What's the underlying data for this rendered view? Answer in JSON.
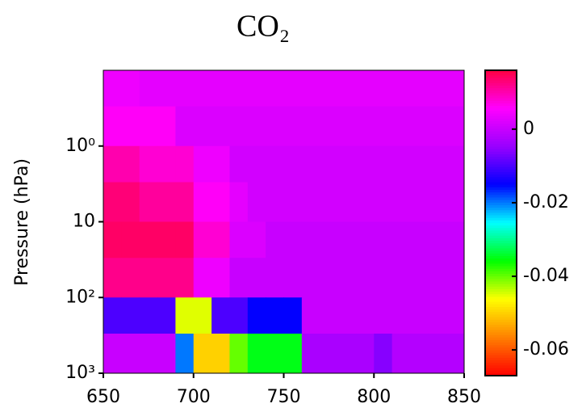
{
  "chart_data": {
    "type": "heatmap",
    "title": "CO₂",
    "ylabel": "Pressure (hPa)",
    "xbins": [
      650,
      660,
      670,
      680,
      690,
      700,
      710,
      720,
      730,
      740,
      750,
      760,
      770,
      780,
      790,
      800,
      810,
      820,
      830,
      840,
      850
    ],
    "ybins": [
      0.1,
      0.3,
      1,
      3,
      10,
      30,
      100,
      300,
      1000
    ],
    "values": [
      [
        0.004,
        0.004,
        0.003,
        0.003,
        0.003,
        0.003,
        0.003,
        0.003,
        0.003,
        0.003,
        0.003,
        0.003,
        0.003,
        0.003,
        0.003,
        0.003,
        0.003,
        0.003,
        0.003,
        0.003
      ],
      [
        0.006,
        0.006,
        0.006,
        0.006,
        0.002,
        0.002,
        0.002,
        0.002,
        0.002,
        0.002,
        0.002,
        0.002,
        0.002,
        0.002,
        0.002,
        0.002,
        0.002,
        0.002,
        0.002,
        0.002
      ],
      [
        0.01,
        0.01,
        0.008,
        0.008,
        0.008,
        0.004,
        0.004,
        0.001,
        0.001,
        0.001,
        0.001,
        0.001,
        0.001,
        0.001,
        0.001,
        0.001,
        0.001,
        0.001,
        0.001,
        0.001
      ],
      [
        0.013,
        0.013,
        0.011,
        0.011,
        0.011,
        0.006,
        0.006,
        0.003,
        0.001,
        0.001,
        0.001,
        0.001,
        0.001,
        0.001,
        0.001,
        0.001,
        0.001,
        0.001,
        0.001,
        0.001
      ],
      [
        0.014,
        0.014,
        0.014,
        0.014,
        0.014,
        0.008,
        0.008,
        0.002,
        0.002,
        0,
        0,
        0,
        0,
        0,
        0,
        0,
        0,
        0,
        0,
        0
      ],
      [
        0.012,
        0.012,
        0.012,
        0.012,
        0.012,
        0.004,
        0.004,
        0,
        0,
        0,
        0,
        0,
        0,
        0,
        0,
        0,
        0,
        0,
        0,
        0
      ],
      [
        -0.01,
        -0.01,
        -0.01,
        -0.01,
        -0.045,
        -0.045,
        -0.01,
        -0.01,
        -0.015,
        -0.015,
        -0.015,
        0,
        0,
        0,
        0,
        0,
        0,
        0,
        0,
        0
      ],
      [
        0,
        0,
        0,
        0,
        -0.02,
        -0.05,
        -0.05,
        -0.04,
        -0.035,
        -0.035,
        -0.035,
        -0.003,
        -0.003,
        -0.003,
        -0.003,
        -0.006,
        -0.002,
        -0.002,
        -0.002,
        -0.002
      ]
    ],
    "xlim": [
      650,
      850
    ],
    "xticks": [
      650,
      700,
      750,
      800,
      850
    ],
    "ylim": [
      1000,
      0.1
    ],
    "yscale": "log",
    "yticks": [
      {
        "value": 1,
        "label": "10⁰"
      },
      10,
      {
        "value": 100,
        "label": "10²"
      },
      {
        "value": 1000,
        "label": "10³"
      }
    ],
    "clim": [
      -0.067,
      0.016
    ],
    "cticks": [
      0,
      -0.02,
      -0.04,
      -0.06
    ],
    "colormap": [
      "#ff0000",
      "#ff8000",
      "#ffff00",
      "#00ff00",
      "#00ffff",
      "#0000ff",
      "#9900ff",
      "#ff00ff",
      "#ff0040"
    ]
  }
}
